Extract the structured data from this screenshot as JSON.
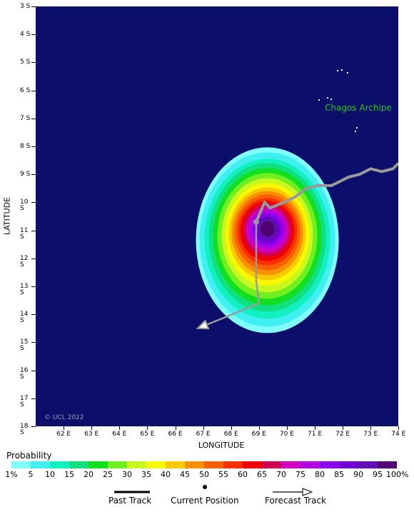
{
  "map": {
    "lat_labels": [
      "3 S",
      "4 S",
      "5 S",
      "6 S",
      "7 S",
      "8 S",
      "9 S",
      "10 S",
      "11 S",
      "12 S",
      "13 S",
      "14 S",
      "15 S",
      "16 S",
      "17 S",
      "18 S"
    ],
    "lon_labels": [
      "62 E",
      "63 E",
      "64 E",
      "65 E",
      "66 E",
      "67 E",
      "68 E",
      "69 E",
      "70 E",
      "71 E",
      "72 E",
      "73 E",
      "74 E"
    ],
    "x_axis_label": "LONGITUDE",
    "y_axis_label": "LATITUDE",
    "place_label": "Chagos Archipe",
    "copyright": "© UCL 2022",
    "ocean_color": "#0b0f6b",
    "track_color": "#9a9a9a"
  },
  "probability": {
    "title": "Probability",
    "labels": [
      "1%",
      "5",
      "10",
      "15",
      "20",
      "25",
      "30",
      "35",
      "40",
      "45",
      "50",
      "55",
      "60",
      "65",
      "70",
      "75",
      "80",
      "85",
      "90",
      "95",
      "100%"
    ],
    "colors": [
      "#80ffff",
      "#40f0f0",
      "#10f0c0",
      "#10e080",
      "#10e020",
      "#70f020",
      "#c8f820",
      "#f8f800",
      "#f8c800",
      "#f89000",
      "#f86000",
      "#f83000",
      "#f00000",
      "#d00050",
      "#d000c0",
      "#b000e0",
      "#8c00f0",
      "#7000d0",
      "#6010b0",
      "#500070"
    ]
  },
  "track": {
    "past_points_deg": [
      [
        74.0,
        8.6
      ],
      [
        73.8,
        8.8
      ],
      [
        73.4,
        8.9
      ],
      [
        73.0,
        8.8
      ],
      [
        72.6,
        9.0
      ],
      [
        72.2,
        9.1
      ],
      [
        71.6,
        9.4
      ],
      [
        71.1,
        9.4
      ],
      [
        70.7,
        9.5
      ],
      [
        70.3,
        9.8
      ],
      [
        69.9,
        10.0
      ],
      [
        69.4,
        10.2
      ],
      [
        69.2,
        10.0
      ],
      [
        68.9,
        10.7
      ]
    ],
    "current_position_deg": [
      68.9,
      10.7
    ],
    "forecast_points_deg": [
      [
        68.9,
        10.7
      ],
      [
        68.9,
        12.8
      ],
      [
        69.0,
        13.6
      ],
      [
        67.8,
        14.1
      ],
      [
        66.8,
        14.5
      ]
    ]
  },
  "legend": {
    "past_track": "Past Track",
    "current_position": "Current Position",
    "forecast_track": "Forecast Track"
  }
}
